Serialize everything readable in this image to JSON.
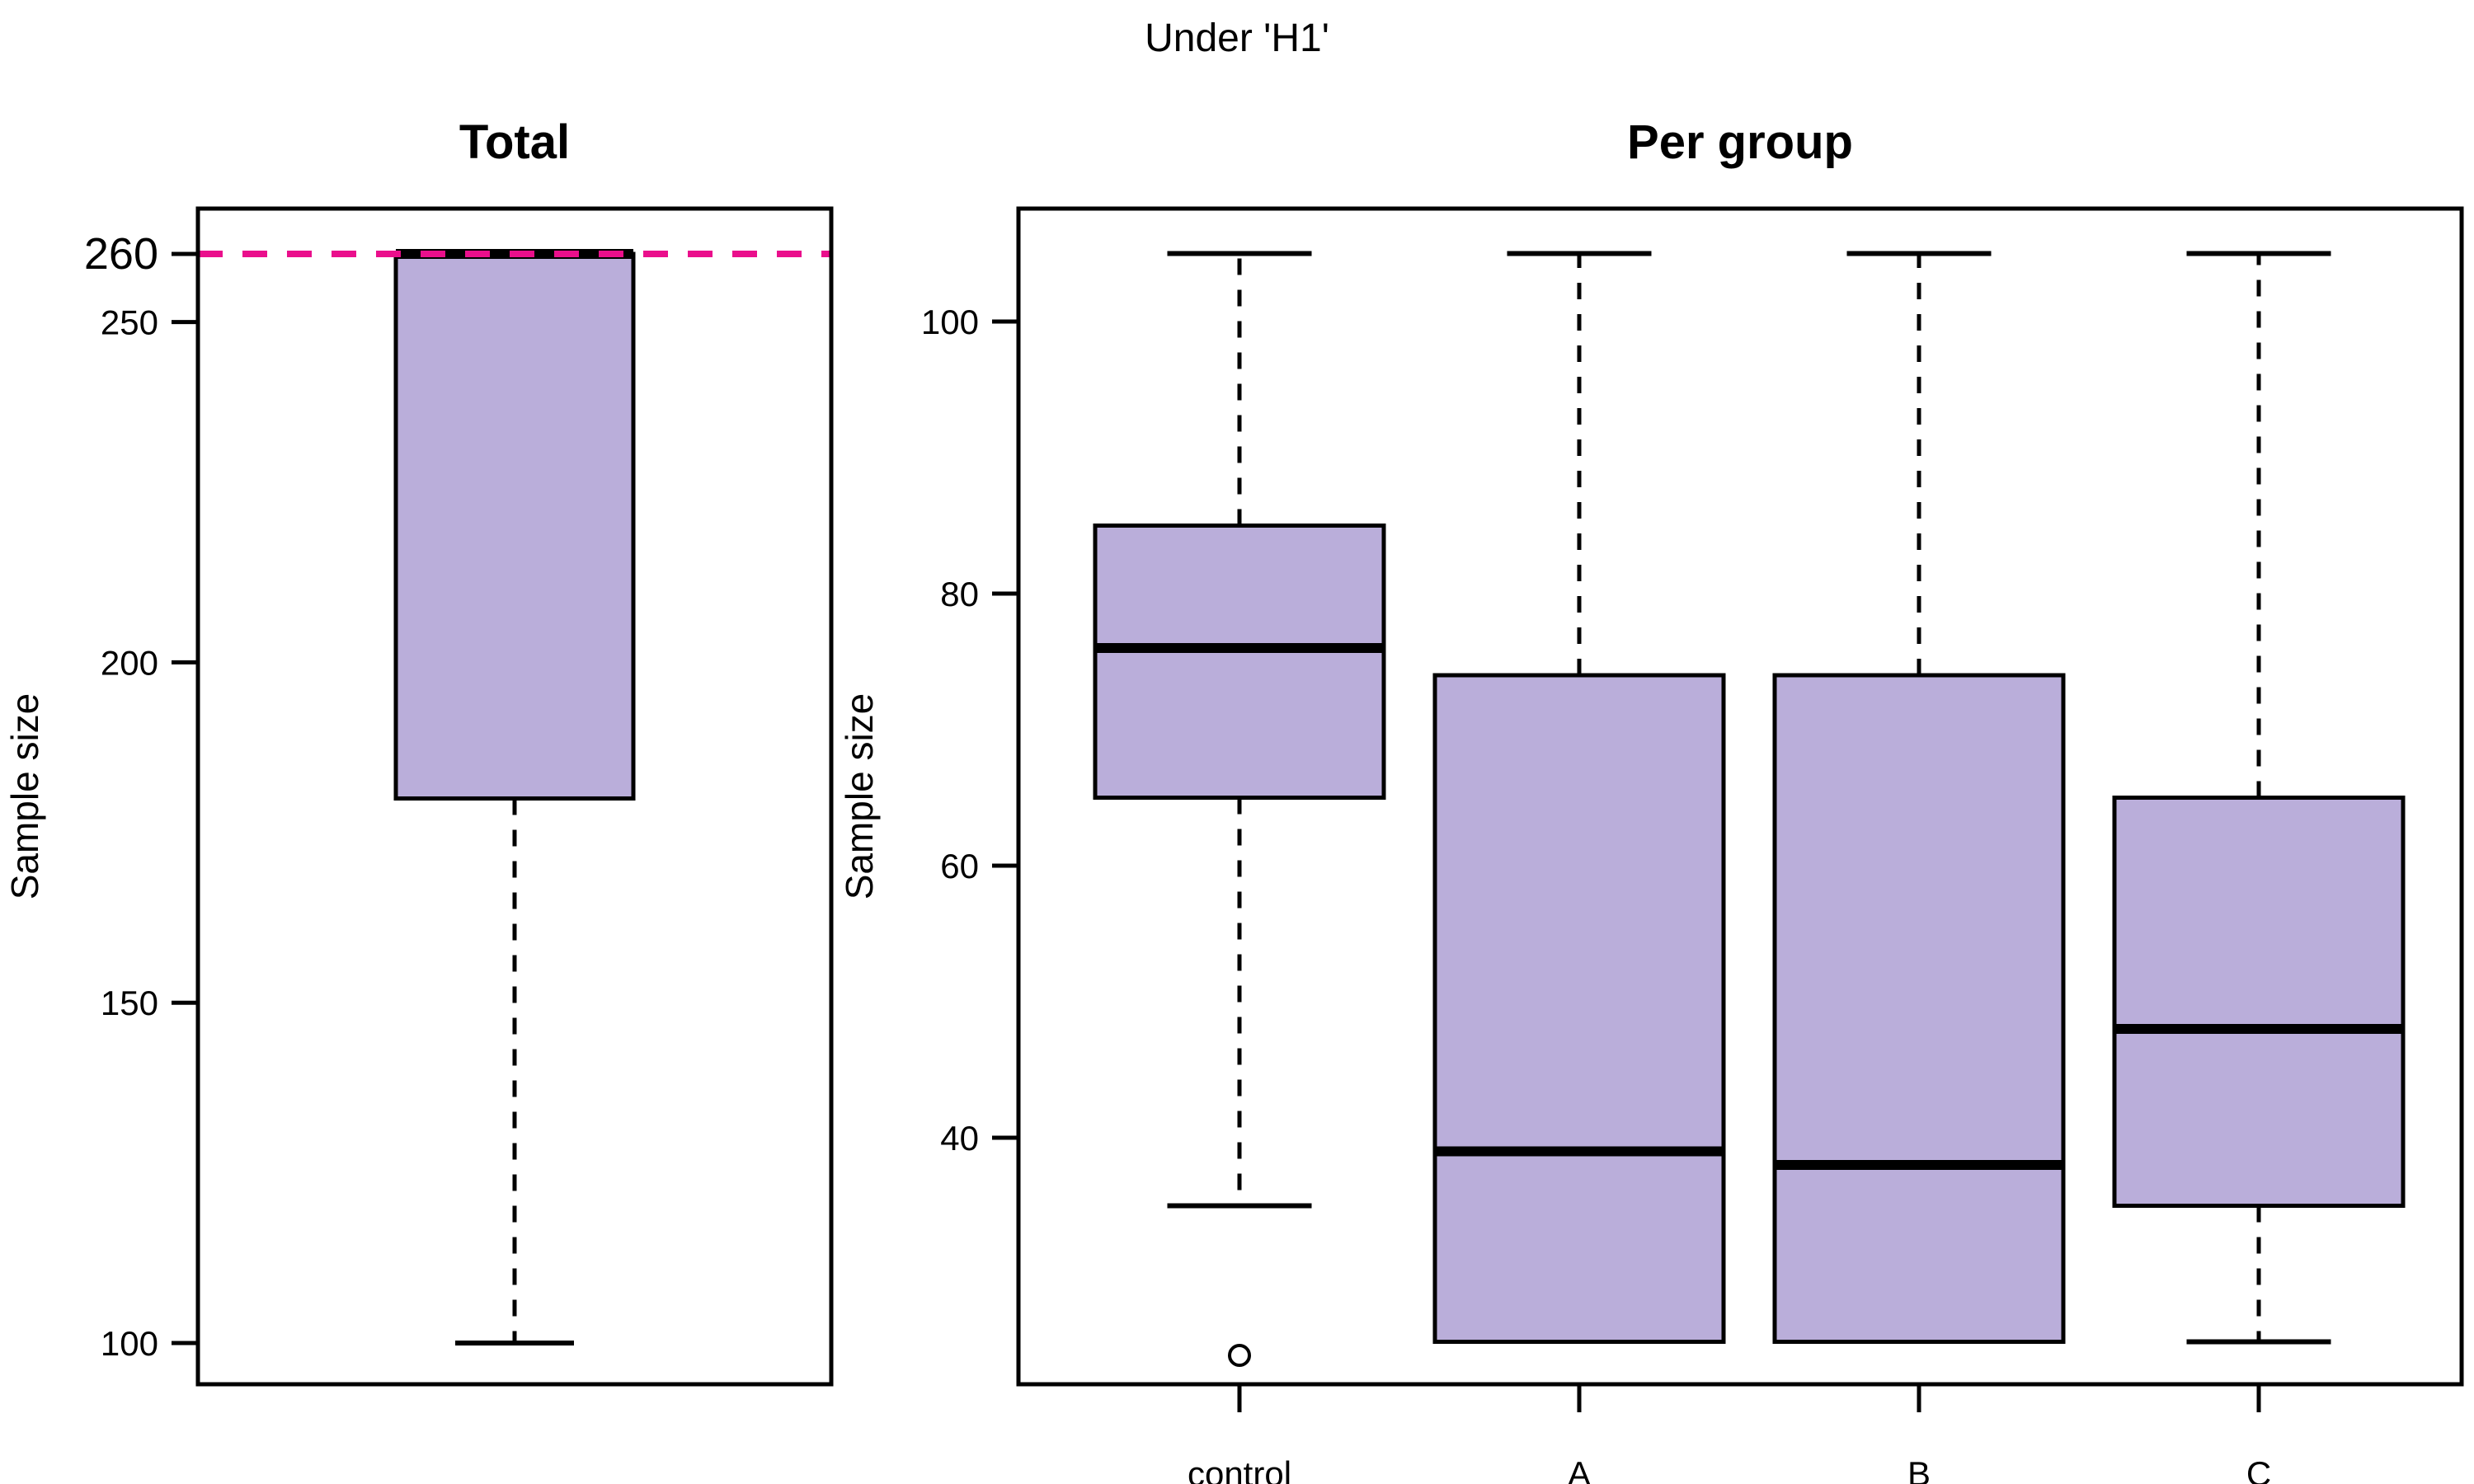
{
  "main_title": "Under 'H1'",
  "colors": {
    "background": "#FFFFFF",
    "box_fill": "#BAAEDA",
    "box_border": "#000000",
    "median": "#000000",
    "whisker": "#000000",
    "ref_line": "#EA0F8C",
    "text": "#000000"
  },
  "chart_data": [
    {
      "type": "box",
      "panel": "total",
      "title": "Total",
      "xlabel": "",
      "ylabel": "Sample size",
      "yticks": [
        100,
        150,
        200,
        250
      ],
      "special_ytick": 260,
      "ylim": [
        94,
        267
      ],
      "grid": false,
      "legend": "none",
      "ref_line": {
        "value": 260,
        "style": "dashed",
        "color": "#EA0F8C"
      },
      "x_labels_visible": false,
      "groups": [
        {
          "label": "",
          "low": 100,
          "q1": 180,
          "median": 260,
          "q3": 260,
          "high": 260,
          "outliers": []
        }
      ]
    },
    {
      "type": "box",
      "panel": "per_group",
      "title": "Per group",
      "xlabel": "",
      "ylabel": "Sample size",
      "yticks": [
        40,
        60,
        80,
        100
      ],
      "ylim": [
        22,
        108
      ],
      "grid": false,
      "legend": "none",
      "x_labels_visible": true,
      "groups": [
        {
          "label": "control",
          "low": 35,
          "q1": 65,
          "median": 76,
          "q3": 85,
          "high": 105,
          "outliers": [
            24
          ]
        },
        {
          "label": "A",
          "low": 25,
          "q1": 25,
          "median": 39,
          "q3": 74,
          "high": 105,
          "outliers": []
        },
        {
          "label": "B",
          "low": 25,
          "q1": 25,
          "median": 38,
          "q3": 74,
          "high": 105,
          "outliers": []
        },
        {
          "label": "C",
          "low": 25,
          "q1": 35,
          "median": 48,
          "q3": 65,
          "high": 105,
          "outliers": []
        }
      ]
    }
  ]
}
